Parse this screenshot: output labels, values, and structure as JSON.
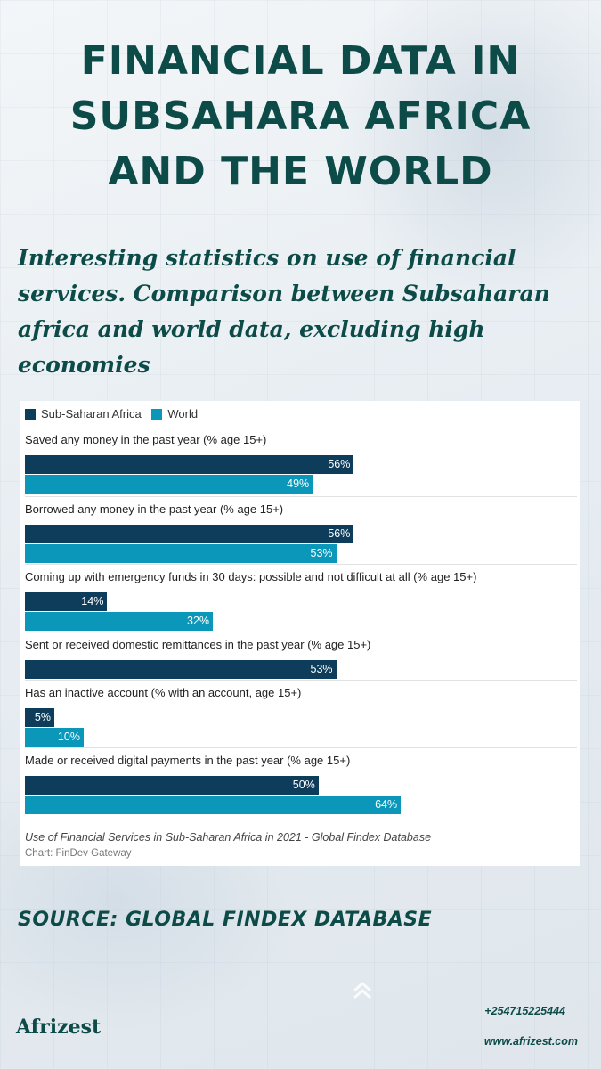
{
  "header": {
    "title_lines": [
      "FINANCIAL DATA IN",
      "SUBSAHARA AFRICA",
      "AND THE WORLD"
    ],
    "subtitle": "Interesting statistics on use of financial services. Comparison between Subsaharan africa and world data, excluding high economies"
  },
  "chart_data": {
    "type": "bar",
    "orientation": "horizontal",
    "series": [
      {
        "name": "Sub-Saharan Africa",
        "color": "#0e3d5c"
      },
      {
        "name": "World",
        "color": "#0b97b9"
      }
    ],
    "groups": [
      {
        "label": "Saved any money in the past year (% age 15+)",
        "values": [
          56,
          49
        ]
      },
      {
        "label": "Borrowed any money in the past year (% age 15+)",
        "values": [
          56,
          53
        ]
      },
      {
        "label": "Coming up with emergency funds in 30 days: possible and not difficult at all (% age 15+)",
        "values": [
          14,
          32
        ]
      },
      {
        "label": "Sent or received domestic remittances in the past year (% age 15+)",
        "values": [
          53,
          null
        ]
      },
      {
        "label": "Has an inactive account (% with an account, age 15+)",
        "values": [
          5,
          10
        ]
      },
      {
        "label": "Made or received digital payments in the past year (% age 15+)",
        "values": [
          50,
          64
        ]
      }
    ],
    "value_suffix": "%",
    "xlim": [
      0,
      94
    ],
    "caption": "Use of Financial Services in Sub-Saharan Africa in 2021 - Global Findex Database",
    "credit": "Chart: FinDev Gateway",
    "legend_position": "top-left"
  },
  "footer": {
    "source": "SOURCE: GLOBAL FINDEX DATABASE",
    "logo": "Afrizest",
    "phone": "+254715225444",
    "website": "www.afrizest.com"
  },
  "colors": {
    "brand": "#0c4b47"
  },
  "icons": [
    "chevron-up-icon"
  ]
}
